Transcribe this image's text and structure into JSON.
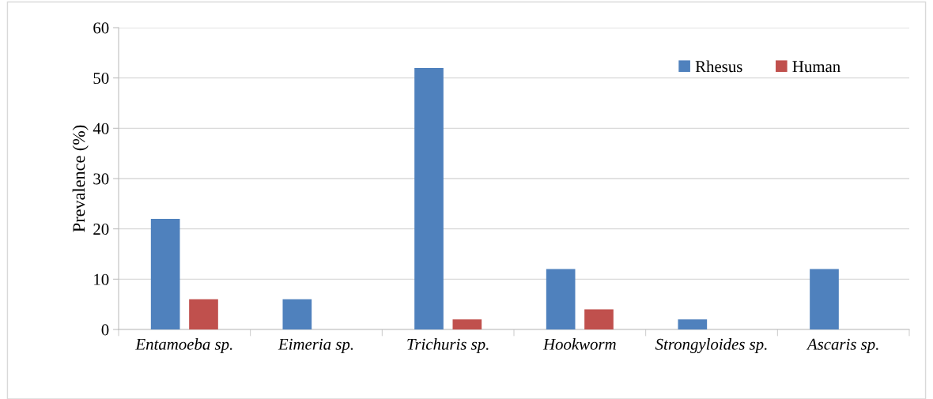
{
  "chart_data": {
    "type": "bar",
    "ylabel": "Prevalence (%)",
    "categories": [
      "Entamoeba sp.",
      "Eimeria sp.",
      "Trichuris sp.",
      "Hookworm",
      "Strongyloides sp.",
      "Ascaris sp."
    ],
    "series": [
      {
        "name": "Rhesus",
        "color": "#4f81bd",
        "values": [
          22,
          6,
          52,
          12,
          2,
          12
        ]
      },
      {
        "name": "Human",
        "color": "#c0504d",
        "values": [
          6,
          0,
          2,
          4,
          0,
          0
        ]
      }
    ],
    "ylim": [
      0,
      60
    ],
    "yticks": [
      0,
      10,
      20,
      30,
      40,
      50,
      60
    ],
    "grid": "y",
    "legend": "top right"
  }
}
